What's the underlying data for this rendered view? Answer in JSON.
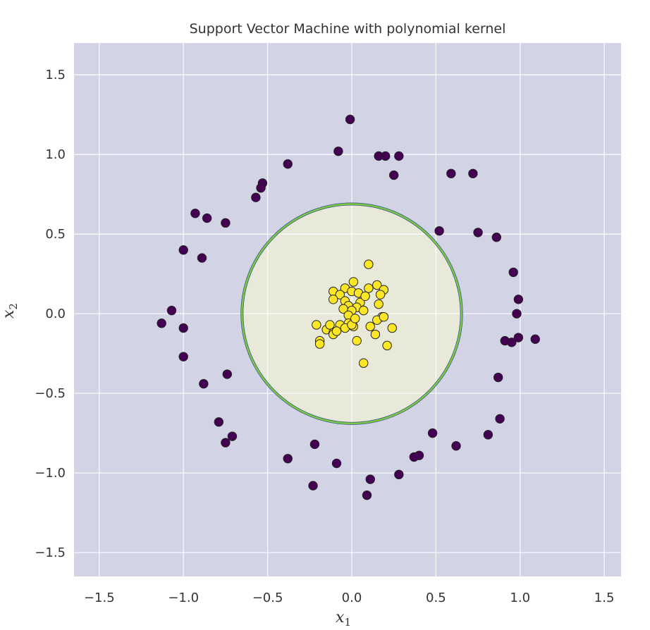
{
  "chart_data": {
    "type": "scatter",
    "title": "Support Vector Machine with polynomial kernel",
    "xlabel": "x",
    "xlabel_sub": "1",
    "ylabel": "x",
    "ylabel_sub": "2",
    "xlim": [
      -1.65,
      1.6
    ],
    "ylim": [
      -1.65,
      1.7
    ],
    "x_ticks": [
      -1.5,
      -1.0,
      -0.5,
      0.0,
      0.5,
      1.0,
      1.5
    ],
    "x_tick_labels": [
      "−1.5",
      "−1.0",
      "−0.5",
      "0.0",
      "0.5",
      "1.0",
      "1.5"
    ],
    "y_ticks": [
      -1.5,
      -1.0,
      -0.5,
      0.0,
      0.5,
      1.0,
      1.5
    ],
    "y_tick_labels": [
      "−1.5",
      "−1.0",
      "−0.5",
      "0.0",
      "0.5",
      "1.0",
      "1.5"
    ],
    "grid": true,
    "colors": {
      "background_outer_region": "#d3d3e6",
      "inner_region_fill": "#e8e9d9",
      "decision_boundary": "#7ac943",
      "decision_boundary_edge": "#3b528b",
      "class_0": "#440154",
      "class_1": "#fde725",
      "marker_edge": "#222222",
      "grid": "#ffffff"
    },
    "decision_boundary": {
      "shape": "circle",
      "center": [
        0.0,
        0.0
      ],
      "radius": 0.67
    },
    "series": [
      {
        "class": 0,
        "color": "#440154",
        "points": [
          [
            -0.01,
            1.22
          ],
          [
            -0.08,
            1.02
          ],
          [
            0.16,
            0.99
          ],
          [
            0.2,
            0.99
          ],
          [
            0.28,
            0.99
          ],
          [
            0.25,
            0.87
          ],
          [
            0.59,
            0.88
          ],
          [
            0.72,
            0.88
          ],
          [
            -0.38,
            0.94
          ],
          [
            -0.53,
            0.82
          ],
          [
            -0.54,
            0.79
          ],
          [
            -0.57,
            0.73
          ],
          [
            -0.93,
            0.63
          ],
          [
            -0.86,
            0.6
          ],
          [
            -0.75,
            0.57
          ],
          [
            -1.0,
            0.4
          ],
          [
            -0.89,
            0.35
          ],
          [
            0.52,
            0.52
          ],
          [
            0.75,
            0.51
          ],
          [
            0.86,
            0.48
          ],
          [
            0.96,
            0.26
          ],
          [
            0.99,
            0.09
          ],
          [
            0.98,
            0.0
          ],
          [
            1.09,
            -0.16
          ],
          [
            0.99,
            -0.15
          ],
          [
            0.91,
            -0.17
          ],
          [
            0.95,
            -0.18
          ],
          [
            0.87,
            -0.4
          ],
          [
            0.88,
            -0.66
          ],
          [
            0.81,
            -0.76
          ],
          [
            0.62,
            -0.83
          ],
          [
            0.48,
            -0.75
          ],
          [
            0.4,
            -0.89
          ],
          [
            0.37,
            -0.9
          ],
          [
            0.28,
            -1.01
          ],
          [
            0.11,
            -1.04
          ],
          [
            0.09,
            -1.14
          ],
          [
            -0.09,
            -0.94
          ],
          [
            -0.22,
            -0.82
          ],
          [
            -0.38,
            -0.91
          ],
          [
            -0.23,
            -1.08
          ],
          [
            -0.79,
            -0.68
          ],
          [
            -0.71,
            -0.77
          ],
          [
            -0.75,
            -0.81
          ],
          [
            -0.74,
            -0.38
          ],
          [
            -0.88,
            -0.44
          ],
          [
            -1.0,
            -0.27
          ],
          [
            -1.0,
            -0.09
          ],
          [
            -1.07,
            0.02
          ],
          [
            -1.13,
            -0.06
          ]
        ]
      },
      {
        "class": 1,
        "color": "#fde725",
        "points": [
          [
            0.1,
            0.31
          ],
          [
            0.01,
            0.2
          ],
          [
            0.15,
            0.18
          ],
          [
            0.19,
            0.15
          ],
          [
            0.1,
            0.16
          ],
          [
            -0.11,
            0.14
          ],
          [
            -0.04,
            0.16
          ],
          [
            0.0,
            0.14
          ],
          [
            0.04,
            0.13
          ],
          [
            -0.07,
            0.12
          ],
          [
            -0.11,
            0.09
          ],
          [
            -0.04,
            0.08
          ],
          [
            0.05,
            0.07
          ],
          [
            0.17,
            0.12
          ],
          [
            0.16,
            0.06
          ],
          [
            -0.02,
            0.05
          ],
          [
            0.03,
            0.04
          ],
          [
            -0.05,
            0.03
          ],
          [
            0.07,
            0.02
          ],
          [
            0.0,
            0.02
          ],
          [
            -0.02,
            -0.01
          ],
          [
            0.18,
            -0.02
          ],
          [
            0.15,
            -0.04
          ],
          [
            0.19,
            -0.02
          ],
          [
            0.11,
            -0.08
          ],
          [
            -0.02,
            -0.06
          ],
          [
            -0.07,
            -0.07
          ],
          [
            -0.21,
            -0.07
          ],
          [
            -0.15,
            -0.1
          ],
          [
            -0.11,
            -0.12
          ],
          [
            0.14,
            -0.13
          ],
          [
            0.24,
            -0.09
          ],
          [
            0.01,
            -0.08
          ],
          [
            -0.04,
            -0.09
          ],
          [
            -0.11,
            -0.13
          ],
          [
            -0.19,
            -0.17
          ],
          [
            -0.19,
            -0.19
          ],
          [
            0.03,
            -0.17
          ],
          [
            0.21,
            -0.2
          ],
          [
            0.07,
            -0.31
          ],
          [
            0.0,
            -0.07
          ],
          [
            -0.09,
            -0.11
          ],
          [
            0.08,
            0.11
          ],
          [
            -0.13,
            -0.07
          ],
          [
            0.02,
            -0.03
          ]
        ]
      }
    ]
  }
}
